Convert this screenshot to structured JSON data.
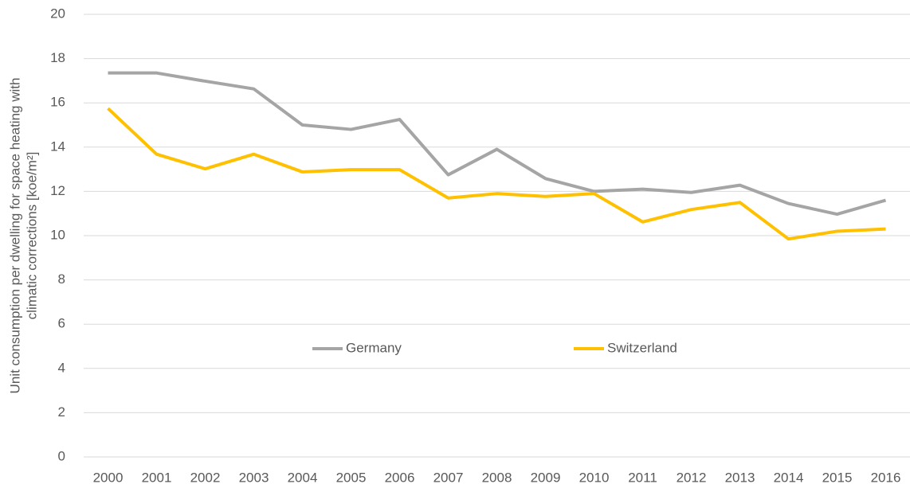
{
  "chart_data": {
    "type": "line",
    "ylabel": [
      "Unit consumption per dwelling for space heating with",
      "climatic corrections [koe/m²]"
    ],
    "categories": [
      "2000",
      "2001",
      "2002",
      "2003",
      "2004",
      "2005",
      "2006",
      "2007",
      "2008",
      "2009",
      "2010",
      "2011",
      "2012",
      "2013",
      "2014",
      "2015",
      "2016"
    ],
    "series": [
      {
        "name": "Germany",
        "color": "#a5a5a5",
        "values": [
          17.35,
          17.35,
          16.98,
          16.63,
          15.0,
          14.8,
          15.25,
          12.75,
          13.9,
          12.58,
          12.0,
          12.1,
          11.95,
          12.28,
          11.45,
          10.97,
          11.6
        ]
      },
      {
        "name": "Switzerland",
        "color": "#ffc000",
        "values": [
          15.75,
          13.68,
          13.02,
          13.68,
          12.88,
          12.98,
          12.98,
          11.7,
          11.9,
          11.77,
          11.9,
          10.62,
          11.18,
          11.5,
          9.85,
          10.2,
          10.3
        ]
      }
    ],
    "ylim": [
      0,
      20
    ],
    "yticks": [
      0,
      2,
      4,
      6,
      8,
      10,
      12,
      14,
      16,
      18,
      20
    ],
    "grid": true,
    "legend": "center"
  }
}
